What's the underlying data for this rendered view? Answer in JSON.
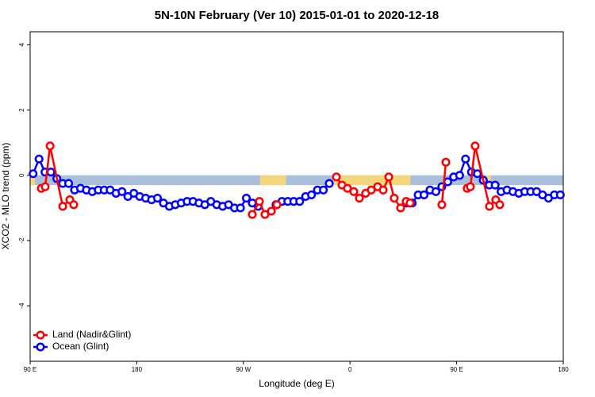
{
  "chart_data": {
    "type": "line",
    "title": "5N-10N February (Ver 10)   2015-01-01 to 2020-12-18",
    "x_label": "Longitude (deg E)",
    "y_label": "XCO2 - MLO trend (ppm)",
    "xlim": [
      90,
      540
    ],
    "xticks": [
      {
        "value": 90,
        "label": "90 E"
      },
      {
        "value": 180,
        "label": "180"
      },
      {
        "value": 270,
        "label": "90 W"
      },
      {
        "value": 360,
        "label": "0"
      },
      {
        "value": 450,
        "label": "90 E"
      },
      {
        "value": 540,
        "label": "180"
      }
    ],
    "ylim": [
      -5.7,
      4.4
    ],
    "yticks": [
      4,
      2,
      0,
      -2,
      -4
    ],
    "legend": "bottom-left",
    "mask": {
      "ylim": [
        -0.3,
        0
      ],
      "ocean_color": "#a9bfdc",
      "land_color": "#f5d67a",
      "land_spans": [
        [
          90,
          94
        ],
        [
          284,
          306
        ],
        [
          346,
          411
        ],
        [
          475,
          479
        ]
      ]
    },
    "series": [
      {
        "name": "Land (Nadir&Glint)",
        "color": "#ff0000",
        "x": [
          99.4,
          102.7,
          106.8,
          117.5,
          123.5,
          126.8,
          200,
          277.5,
          283.5,
          288.2,
          293.6,
          298.3,
          320,
          348.5,
          353.2,
          357.8,
          363.2,
          367.9,
          373.2,
          377.9,
          383.3,
          388.0,
          392.7,
          397.3,
          402.7,
          407.4,
          410.7,
          420,
          437.5,
          440.9,
          450,
          458.9,
          461.6,
          465.6,
          477.7,
          483.0,
          486.4
        ],
        "values": [
          -0.4,
          -0.35,
          0.9,
          -0.95,
          -0.75,
          -0.9,
          null,
          -1.2,
          -0.8,
          -1.2,
          -1.1,
          -0.9,
          null,
          -0.05,
          -0.3,
          -0.4,
          -0.5,
          -0.7,
          -0.55,
          -0.45,
          -0.35,
          -0.45,
          -0.05,
          -0.7,
          -1.0,
          -0.8,
          -0.85,
          null,
          -0.9,
          0.4,
          null,
          -0.4,
          -0.35,
          0.9,
          -0.95,
          -0.75,
          -0.9
        ]
      },
      {
        "name": "Ocean (Glint)",
        "color": "#0000ff",
        "x": [
          92.5,
          97.5,
          102.5,
          107.5,
          112.5,
          117.5,
          122.5,
          127.5,
          132.5,
          137.5,
          142.5,
          147.5,
          152.5,
          157.5,
          162.5,
          167.5,
          172.5,
          177.5,
          182.5,
          187.5,
          192.5,
          197.5,
          202.5,
          207.5,
          212.5,
          217.5,
          222.5,
          227.5,
          232.5,
          237.5,
          242.5,
          247.5,
          252.5,
          257.5,
          262.5,
          267.5,
          272.5,
          277.5,
          282.5,
          287.5,
          292.5,
          297.5,
          302.5,
          307.5,
          312.5,
          317.5,
          322.5,
          327.5,
          332.5,
          337.5,
          342.5,
          347.5,
          352.5,
          357.5,
          362.5,
          367.5,
          372.5,
          377.5,
          382.5,
          387.5,
          392.5,
          397.5,
          402.5,
          407.5,
          412.5,
          417.5,
          422.5,
          427.5,
          432.5,
          437.5,
          442.5,
          447.5,
          452.5,
          457.5,
          462.5,
          467.5,
          472.5,
          477.5,
          482.5,
          487.5,
          492.5,
          497.5,
          502.5,
          507.5,
          512.5,
          517.5,
          522.5,
          527.5,
          532.5,
          537.5
        ],
        "values": [
          0.05,
          0.5,
          0.1,
          0.1,
          -0.1,
          -0.25,
          -0.25,
          -0.45,
          -0.4,
          -0.45,
          -0.5,
          -0.45,
          -0.45,
          -0.45,
          -0.55,
          -0.5,
          -0.65,
          -0.55,
          -0.65,
          -0.7,
          -0.75,
          -0.7,
          -0.85,
          -0.95,
          -0.9,
          -0.85,
          -0.8,
          -0.8,
          -0.85,
          -0.9,
          -0.8,
          -0.9,
          -0.95,
          -0.9,
          -1.0,
          -1.0,
          -0.7,
          -0.85,
          -0.95,
          null,
          null,
          -0.9,
          -0.8,
          -0.8,
          -0.8,
          -0.8,
          -0.65,
          -0.6,
          -0.45,
          -0.45,
          -0.25,
          null,
          null,
          null,
          null,
          null,
          null,
          null,
          null,
          null,
          null,
          null,
          null,
          -0.85,
          -0.85,
          -0.6,
          -0.6,
          -0.45,
          -0.5,
          -0.35,
          -0.2,
          -0.05,
          0.0,
          0.5,
          0.1,
          0.05,
          -0.15,
          -0.3,
          -0.3,
          -0.5,
          -0.45,
          -0.5,
          -0.55,
          -0.5,
          -0.5,
          -0.5,
          -0.6,
          -0.7,
          -0.6,
          -0.6
        ]
      }
    ]
  }
}
